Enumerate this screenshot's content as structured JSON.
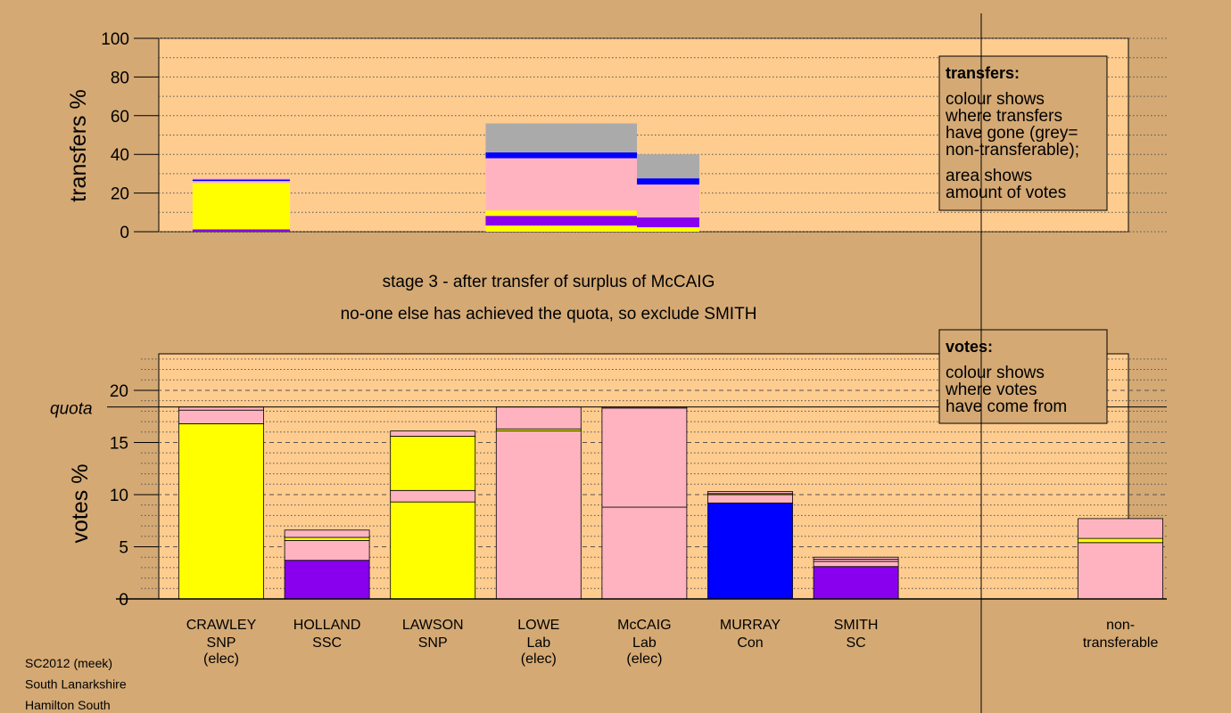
{
  "chart_data": {
    "type": "bar",
    "stage_title": "stage 3 - after transfer of surplus of McCAIG",
    "stage_subtitle": "no-one else has achieved the quota, so exclude SMITH",
    "colors": {
      "SNP": "#ffff00",
      "SSC": "#8800ee",
      "Lab": "#ffb3c1",
      "Con": "#0000ff",
      "SC": "#8800ee",
      "nontransferable": "#aaaaaa"
    },
    "candidates": [
      {
        "name": "CRAWLEY",
        "party": "SNP",
        "status": "(elec)"
      },
      {
        "name": "HOLLAND",
        "party": "SSC",
        "status": ""
      },
      {
        "name": "LAWSON",
        "party": "SNP",
        "status": ""
      },
      {
        "name": "LOWE",
        "party": "Lab",
        "status": "(elec)"
      },
      {
        "name": "McCAIG",
        "party": "Lab",
        "status": "(elec)"
      },
      {
        "name": "MURRAY",
        "party": "Con",
        "status": ""
      },
      {
        "name": "SMITH",
        "party": "SC",
        "status": ""
      },
      {
        "name": "non-",
        "party": "transferable",
        "status": ""
      }
    ],
    "transfers_chart": {
      "ylabel": "transfers %",
      "ylim": [
        0,
        100
      ],
      "yticks": [
        0,
        20,
        40,
        60,
        80,
        100
      ],
      "legend": {
        "title": "transfers:",
        "lines1": [
          "colour shows",
          "where transfers",
          "have gone (grey=",
          "non-transferable);"
        ],
        "lines2": [
          "area shows",
          "amount of votes"
        ]
      },
      "blocks": [
        {
          "x_from": 0.13,
          "x_to": 1.05,
          "segments": [
            {
              "party": "SSC",
              "from": 0,
              "to": 1.2
            },
            {
              "party": "SNP",
              "from": 1.2,
              "to": 25.2
            },
            {
              "party": "Lab",
              "from": 25.2,
              "to": 26.2
            },
            {
              "party": "Con",
              "from": 26.2,
              "to": 27.0
            },
            {
              "party": "Lab",
              "from": 27.0,
              "to": 27.8
            }
          ]
        },
        {
          "x_from": 2.9,
          "x_to": 4.33,
          "segments": [
            {
              "party": "SNP",
              "from": 0,
              "to": 3.2
            },
            {
              "party": "SSC",
              "from": 3.2,
              "to": 8.2
            },
            {
              "party": "SNP",
              "from": 8.2,
              "to": 11.0
            },
            {
              "party": "Lab",
              "from": 11.0,
              "to": 38.0
            },
            {
              "party": "Con",
              "from": 38.0,
              "to": 41.0
            },
            {
              "party": "nontransferable",
              "from": 41.0,
              "to": 56.0
            }
          ]
        },
        {
          "x_from": 4.33,
          "x_to": 4.92,
          "segments": [
            {
              "party": "SNP",
              "from": 0,
              "to": 2.3
            },
            {
              "party": "SSC",
              "from": 2.3,
              "to": 7.4
            },
            {
              "party": "Lab",
              "from": 7.4,
              "to": 24.4
            },
            {
              "party": "Con",
              "from": 24.4,
              "to": 27.6
            },
            {
              "party": "nontransferable",
              "from": 27.6,
              "to": 40.0
            }
          ]
        }
      ]
    },
    "votes_chart": {
      "ylabel": "votes %",
      "ylim": [
        0,
        23.5
      ],
      "yticks": [
        0,
        5,
        10,
        15,
        20
      ],
      "quota": 18.4,
      "quota_label": "quota",
      "legend": {
        "title": "votes:",
        "lines": [
          "colour shows",
          "where votes",
          "have come from"
        ]
      },
      "bars": [
        {
          "segments": [
            {
              "party": "SNP",
              "from": 0,
              "to": 16.8
            },
            {
              "party": "Lab",
              "from": 16.8,
              "to": 18.1
            },
            {
              "party": "Lab",
              "from": 18.1,
              "to": 18.4
            }
          ]
        },
        {
          "segments": [
            {
              "party": "SSC",
              "from": 0,
              "to": 3.7
            },
            {
              "party": "Lab",
              "from": 3.7,
              "to": 5.6
            },
            {
              "party": "SNP",
              "from": 5.6,
              "to": 5.9
            },
            {
              "party": "Lab",
              "from": 5.9,
              "to": 6.6
            }
          ]
        },
        {
          "segments": [
            {
              "party": "SNP",
              "from": 0,
              "to": 9.3
            },
            {
              "party": "Lab",
              "from": 9.3,
              "to": 10.4
            },
            {
              "party": "SNP",
              "from": 10.4,
              "to": 15.6
            },
            {
              "party": "Lab",
              "from": 15.6,
              "to": 16.1
            }
          ]
        },
        {
          "segments": [
            {
              "party": "Lab",
              "from": 0,
              "to": 16.1
            },
            {
              "party": "SNP",
              "from": 16.1,
              "to": 16.3
            },
            {
              "party": "Lab",
              "from": 16.3,
              "to": 18.4
            }
          ]
        },
        {
          "segments": [
            {
              "party": "Lab",
              "from": 0,
              "to": 8.8
            },
            {
              "party": "Lab",
              "from": 8.8,
              "to": 18.3
            },
            {
              "party": "Lab",
              "from": 18.3,
              "to": 18.4
            }
          ]
        },
        {
          "segments": [
            {
              "party": "Con",
              "from": 0,
              "to": 9.2
            },
            {
              "party": "Lab",
              "from": 9.2,
              "to": 10.0
            },
            {
              "party": "SNP",
              "from": 10.0,
              "to": 10.1
            },
            {
              "party": "Lab",
              "from": 10.1,
              "to": 10.3
            }
          ]
        },
        {
          "segments": [
            {
              "party": "SSC",
              "from": 0,
              "to": 3.1
            },
            {
              "party": "Lab",
              "from": 3.1,
              "to": 3.6
            },
            {
              "party": "Lab",
              "from": 3.6,
              "to": 3.8
            },
            {
              "party": "Lab",
              "from": 3.8,
              "to": 4.0
            }
          ]
        },
        {
          "slot": 8.5,
          "segments": [
            {
              "party": "Lab",
              "from": 0,
              "to": 5.4
            },
            {
              "party": "SNP",
              "from": 5.4,
              "to": 5.8
            },
            {
              "party": "Lab",
              "from": 5.8,
              "to": 7.7
            }
          ]
        }
      ]
    }
  },
  "footer": [
    "SC2012 (meek)",
    "South Lanarkshire",
    "Hamilton South"
  ]
}
